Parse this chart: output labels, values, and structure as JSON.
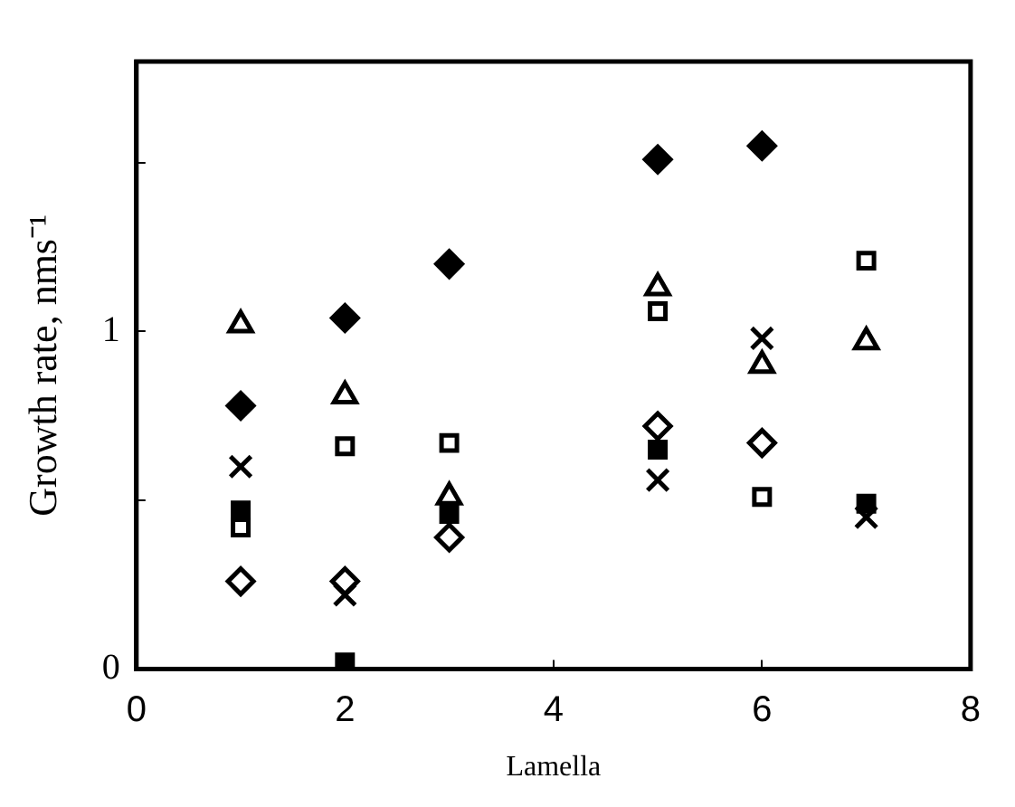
{
  "chart_data": {
    "type": "scatter",
    "xlabel": "Lamella",
    "ylabel": "Growth rate, nms⁻¹",
    "xlim": [
      0,
      8
    ],
    "xticks": [
      0,
      2,
      4,
      6,
      8
    ],
    "ylim": [
      0,
      1.8
    ],
    "yticks": [
      0,
      {
        "value": 0.5,
        "label": null
      },
      1,
      {
        "value": 1.5,
        "label": null
      }
    ],
    "grid": false,
    "legend": false,
    "series": [
      {
        "color": "#000000",
        "marker": "diamond",
        "x": [
          1,
          2,
          3,
          5,
          6
        ],
        "values": [
          0.78,
          1.04,
          1.2,
          1.51,
          1.55
        ]
      },
      {
        "color": "#ffffff",
        "marker": "triangle",
        "x": [
          1,
          2,
          3,
          5,
          6,
          7
        ],
        "values": [
          1.02,
          0.81,
          0.51,
          1.13,
          0.9,
          0.97
        ]
      },
      {
        "color": "#ffffff",
        "marker": "square",
        "x": [
          1,
          2,
          3,
          5,
          6,
          7
        ],
        "values": [
          0.42,
          0.66,
          0.67,
          1.06,
          0.51,
          1.21
        ]
      },
      {
        "color": "#000000",
        "marker": "cross",
        "x": [
          1,
          2,
          3,
          5,
          6,
          7
        ],
        "values": [
          0.6,
          0.22,
          null,
          0.56,
          0.98,
          0.45
        ]
      },
      {
        "color": "#000000",
        "marker": "square",
        "x": [
          1,
          2,
          3,
          5,
          7
        ],
        "values": [
          0.47,
          0.02,
          0.46,
          0.65,
          0.49
        ]
      },
      {
        "color": "#ffffff",
        "marker": "diamond",
        "x": [
          1,
          2,
          3,
          5,
          6
        ],
        "values": [
          0.26,
          0.26,
          0.39,
          0.72,
          0.67
        ]
      }
    ]
  }
}
